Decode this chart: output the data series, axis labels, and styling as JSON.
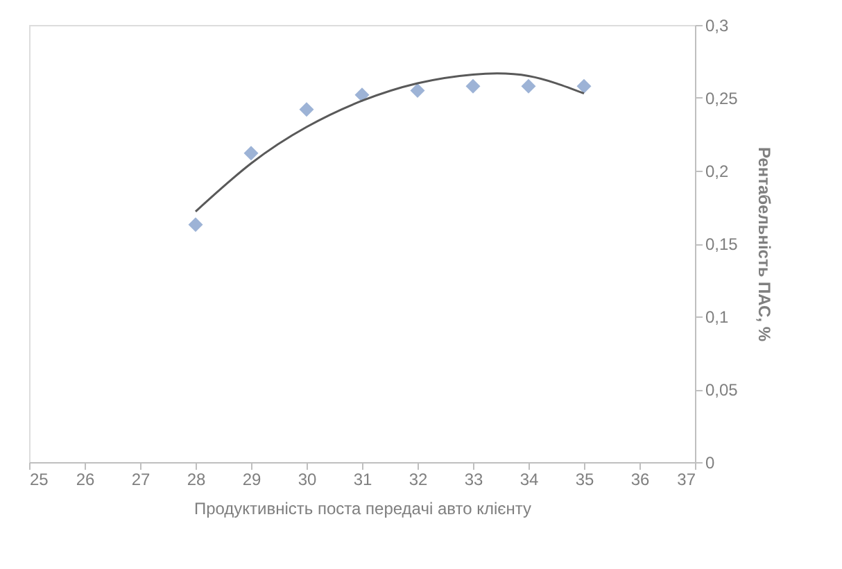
{
  "chart_data": {
    "type": "scatter",
    "xlabel": "Продуктивність  поста передачі авто  клієнту",
    "ylabel": "Рентабельність ПАС, %",
    "xlim": [
      25,
      37
    ],
    "xticks": [
      25,
      26,
      27,
      28,
      29,
      30,
      31,
      32,
      33,
      34,
      35,
      36,
      37
    ],
    "ylim": [
      0,
      0.3
    ],
    "yticks": [
      0,
      {
        "value": 0.05,
        "label": "0,05"
      },
      {
        "value": 0.1,
        "label": "0,1"
      },
      {
        "value": 0.15,
        "label": "0,15"
      },
      {
        "value": 0.2,
        "label": "0,2"
      },
      {
        "value": 0.25,
        "label": "0,25"
      },
      {
        "value": 0.3,
        "label": "0,3"
      }
    ],
    "grid": false,
    "legend": false,
    "marker": "diamond",
    "series": [
      {
        "color": "#9db3d6",
        "x": [
          28,
          29,
          30,
          31,
          32,
          33,
          34,
          35
        ],
        "values": [
          0.163,
          0.212,
          0.242,
          0.252,
          0.255,
          0.258,
          0.258,
          0.258
        ]
      },
      {
        "type": "line",
        "color": "#595959",
        "marker": "none",
        "line_style": "solid",
        "x": [
          28,
          29,
          30,
          31,
          32,
          33,
          34,
          35
        ],
        "values": [
          0.172,
          0.205,
          0.23,
          0.248,
          0.26,
          0.266,
          0.265,
          0.253
        ]
      }
    ]
  }
}
